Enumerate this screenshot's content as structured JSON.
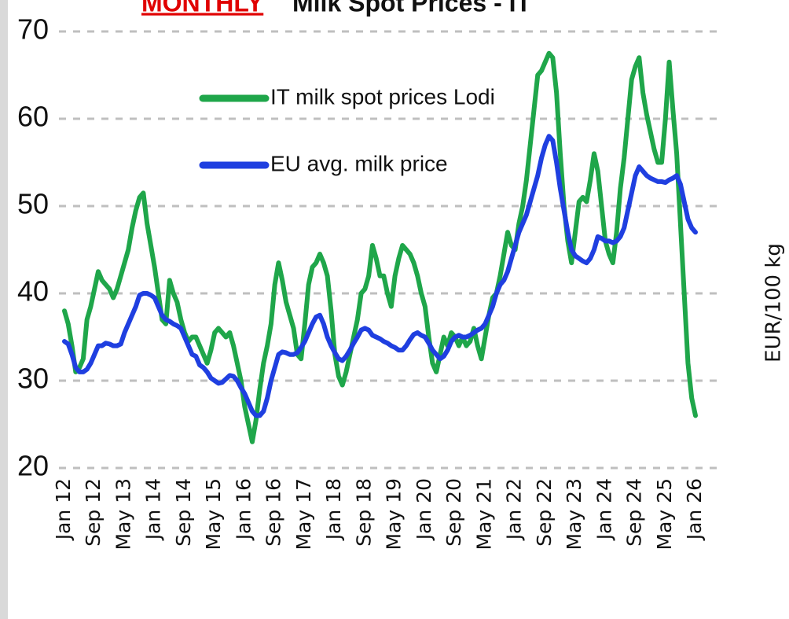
{
  "chart_data": {
    "type": "line",
    "title_highlight": "MONTHLY",
    "title": "Milk Spot Prices - IT",
    "y_axis_label": "EUR/100 kg",
    "categories": [
      "Jan 12",
      null,
      null,
      null,
      null,
      null,
      null,
      null,
      "Sep 12",
      null,
      null,
      null,
      null,
      null,
      null,
      null,
      "May 13",
      null,
      null,
      null,
      null,
      null,
      null,
      null,
      "Jan 14",
      null,
      null,
      null,
      null,
      null,
      null,
      null,
      "Sep 14",
      null,
      null,
      null,
      null,
      null,
      null,
      null,
      "May 15",
      null,
      null,
      null,
      null,
      null,
      null,
      null,
      "Jan 16",
      null,
      null,
      null,
      null,
      null,
      null,
      null,
      "Sep 16",
      null,
      null,
      null,
      null,
      null,
      null,
      null,
      "May 17",
      null,
      null,
      null,
      null,
      null,
      null,
      null,
      "Jan 18",
      null,
      null,
      null,
      null,
      null,
      null,
      null,
      "Sep 18",
      null,
      null,
      null,
      null,
      null,
      null,
      null,
      "May 19",
      null,
      null,
      null,
      null,
      null,
      null,
      null,
      "Jan 20",
      null,
      null,
      null,
      null,
      null,
      null,
      null,
      "Sep 20",
      null,
      null,
      null,
      null,
      null,
      null,
      null,
      "May 21",
      null,
      null,
      null,
      null,
      null,
      null,
      null,
      "Jan 22",
      null,
      null,
      null,
      null,
      null,
      null,
      null,
      "Sep 22",
      null,
      null,
      null,
      null,
      null,
      null,
      null,
      "May 23",
      null,
      null,
      null,
      null,
      null,
      null,
      null,
      "Jan 24",
      null,
      null,
      null,
      null,
      null,
      null,
      null,
      "Sep 24",
      null,
      null,
      null,
      null,
      null,
      null,
      null,
      "May 25",
      null,
      null,
      null,
      null,
      null,
      null,
      null,
      "Jan 26"
    ],
    "series": [
      {
        "name": "IT milk spot prices Lodi",
        "color": "#1fa64a",
        "values": [
          38,
          36.5,
          34,
          31,
          31.5,
          32.5,
          37,
          38.5,
          40.5,
          42.5,
          41.5,
          41,
          40.5,
          39.5,
          40.5,
          42,
          43.5,
          45,
          47.5,
          49.5,
          51,
          51.5,
          48,
          45.5,
          43,
          40,
          37,
          36.5,
          41.5,
          40,
          39,
          37,
          35.5,
          34.5,
          35,
          35,
          34,
          33,
          32,
          33.5,
          35.5,
          36,
          35.5,
          35,
          35.5,
          34,
          32,
          30,
          27,
          25,
          23,
          25.5,
          29,
          32,
          34,
          36.5,
          41,
          43.5,
          41.5,
          39,
          37.5,
          36,
          33,
          32.5,
          36.5,
          41,
          43,
          43.5,
          44.5,
          43.5,
          42,
          38,
          33,
          30.5,
          29.5,
          31,
          33,
          35,
          37,
          40,
          40.5,
          42,
          45.5,
          44,
          42,
          42,
          40,
          38.5,
          42,
          44,
          45.5,
          45,
          44.5,
          43.5,
          42,
          40,
          38.5,
          35,
          32,
          31,
          33,
          35,
          34,
          35.5,
          35,
          34,
          35,
          34,
          34.5,
          36,
          34,
          32.5,
          35,
          37.5,
          39.5,
          40,
          42,
          44.5,
          47,
          45.5,
          45,
          48,
          50,
          53,
          57,
          61,
          65,
          65.5,
          66.5,
          67.5,
          67,
          63,
          56,
          50,
          46,
          43.5,
          47,
          50.5,
          51,
          50.5,
          53,
          56,
          54,
          50,
          46,
          44.5,
          43.5,
          47,
          52,
          55.5,
          60,
          64.5,
          66,
          67,
          63,
          60.5,
          58.5,
          56.5,
          55,
          55,
          60,
          66.5,
          61,
          56,
          48,
          40,
          32,
          28,
          26
        ]
      },
      {
        "name": "EU avg. milk price",
        "color": "#1f3fe0",
        "values": [
          34.5,
          34.2,
          33,
          31.5,
          31,
          31,
          31.3,
          32,
          33,
          34,
          34,
          34.3,
          34.2,
          34,
          34,
          34.2,
          35.5,
          36.5,
          37.5,
          38.5,
          39.8,
          40,
          40,
          39.8,
          39.5,
          38.5,
          37.5,
          37,
          36.8,
          36.5,
          36.3,
          36,
          35,
          34,
          33,
          32.8,
          31.8,
          31.5,
          31,
          30.3,
          30,
          29.7,
          29.8,
          30.2,
          30.6,
          30.5,
          30,
          29.2,
          28.5,
          27.5,
          26.5,
          26,
          26,
          26.5,
          28,
          30,
          31.5,
          33,
          33.3,
          33.2,
          33,
          33,
          33.2,
          33.8,
          34.5,
          35.5,
          36.5,
          37.3,
          37.5,
          36.5,
          35,
          34,
          33.2,
          32.5,
          32.3,
          32.8,
          33.5,
          34.3,
          35,
          35.8,
          36,
          35.8,
          35.2,
          35,
          34.8,
          34.5,
          34.3,
          34,
          33.8,
          33.5,
          33.5,
          34,
          34.7,
          35.3,
          35.5,
          35.2,
          35,
          34.3,
          33.5,
          33,
          32.5,
          32.8,
          33.5,
          34.5,
          35,
          35.2,
          35,
          35,
          35.2,
          35.5,
          35.8,
          36,
          36.5,
          37.5,
          38.5,
          40,
          41,
          41.5,
          42.5,
          44,
          45.5,
          47,
          48,
          49,
          50.5,
          52,
          53.5,
          55.5,
          57,
          58,
          57.5,
          55,
          52,
          49.5,
          47,
          45,
          44.3,
          44,
          43.7,
          43.5,
          44,
          45,
          46.5,
          46.3,
          46,
          46,
          45.8,
          46,
          46.5,
          47.5,
          49.5,
          51.5,
          53.5,
          54.5,
          54,
          53.5,
          53.2,
          53,
          52.8,
          52.8,
          52.7,
          53,
          53.2,
          53.5,
          52.5,
          50.5,
          48.5,
          47.5,
          47
        ]
      }
    ],
    "ylim": [
      20,
      70
    ],
    "yticks": [
      20,
      30,
      40,
      50,
      60,
      70
    ],
    "grid": true
  }
}
